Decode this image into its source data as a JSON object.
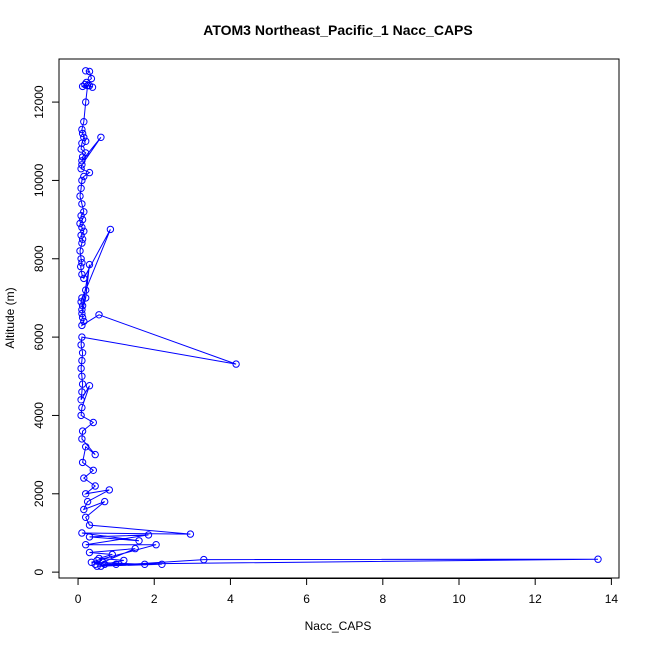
{
  "chart_data": {
    "type": "scatter",
    "title": "ATOM3 Northeast_Pacific_1 Nacc_CAPS",
    "xlabel": "Nacc_CAPS",
    "ylabel": "Altitude (m)",
    "xlim": [
      -0.5,
      14.2
    ],
    "ylim": [
      -150,
      13100
    ],
    "xticks": [
      0,
      2,
      4,
      6,
      8,
      10,
      12,
      14
    ],
    "yticks": [
      0,
      2000,
      4000,
      6000,
      8000,
      10000,
      12000
    ],
    "grid": false,
    "color": "#0000ff",
    "marker": "open-circle",
    "connected": true,
    "series": [
      {
        "x": [
          0.2,
          0.3,
          0.35,
          0.22,
          0.18,
          0.12,
          0.3,
          0.38,
          0.25,
          0.2,
          0.15,
          0.1,
          0.12,
          0.2,
          0.15,
          0.1,
          0.08,
          0.2,
          0.12,
          0.1,
          0.6,
          0.1,
          0.08,
          0.3,
          0.15,
          0.1,
          0.08,
          0.05,
          0.1,
          0.15,
          0.08,
          0.12,
          0.05,
          0.1,
          0.15,
          0.08,
          0.12,
          0.1,
          0.05,
          0.08,
          0.1,
          0.07,
          0.1,
          0.15,
          0.85,
          0.2,
          0.1,
          0.08,
          0.12,
          0.1,
          0.3,
          0.2,
          0.1,
          0.12,
          0.15,
          0.1,
          0.55,
          4.15,
          0.1,
          0.08,
          0.12,
          0.1,
          0.08,
          0.1,
          0.12,
          0.1,
          0.08,
          0.3,
          0.1,
          0.08,
          0.4,
          0.12,
          0.1,
          0.45,
          0.2,
          0.12,
          0.4,
          0.15,
          0.45,
          0.2,
          0.82,
          0.25,
          0.15,
          0.7,
          0.2,
          0.3,
          2.95,
          0.1,
          1.6,
          0.3,
          1.85,
          0.2,
          2.05,
          0.5,
          0.35,
          1.75,
          0.6,
          3.3,
          13.65,
          0.45,
          1.0,
          0.5,
          2.2,
          0.7,
          1.2,
          0.55,
          0.9,
          0.3,
          1.5,
          0.65
        ],
        "y": [
          12800,
          12780,
          12600,
          12500,
          12450,
          12400,
          12420,
          12380,
          12420,
          12000,
          11500,
          11300,
          11200,
          11000,
          11100,
          10950,
          10800,
          10700,
          10600,
          10500,
          11100,
          10400,
          10300,
          10200,
          10100,
          10000,
          9800,
          9600,
          9400,
          9200,
          9100,
          9000,
          8900,
          8800,
          8700,
          8600,
          8500,
          8400,
          8200,
          8000,
          7900,
          7800,
          7600,
          7500,
          8750,
          7200,
          7000,
          6900,
          6800,
          6700,
          7850,
          7000,
          6600,
          6500,
          6400,
          6300,
          6570,
          5310,
          6000,
          5800,
          5600,
          5400,
          5200,
          5000,
          4800,
          4600,
          4400,
          4760,
          4200,
          4000,
          3820,
          3600,
          3400,
          3000,
          3200,
          2800,
          2600,
          2400,
          2200,
          2000,
          2100,
          1800,
          1600,
          1800,
          1400,
          1200,
          970,
          1000,
          800,
          900,
          950,
          700,
          700,
          300,
          250,
          200,
          150,
          320,
          330,
          200,
          200,
          150,
          200,
          200,
          300,
          350,
          450,
          500,
          600,
          250
        ]
      }
    ]
  }
}
